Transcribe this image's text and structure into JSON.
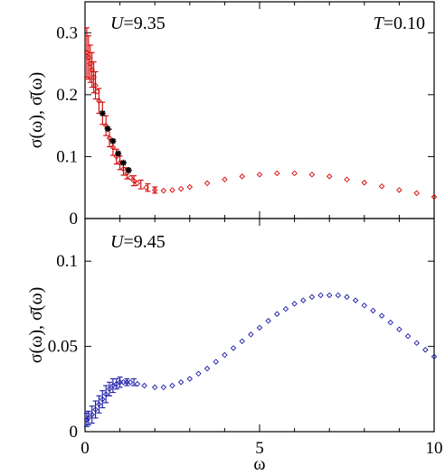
{
  "chart_data": [
    {
      "type": "scatter",
      "annotations": [
        {
          "text_var": "U",
          "text_val": "=9.35",
          "position": "top-left"
        },
        {
          "text_var": "T",
          "text_val": "=0.10",
          "position": "top-right"
        }
      ],
      "ylabel": "σ(ω), σ̄(ω)",
      "xlim": [
        0,
        10
      ],
      "ylim": [
        0,
        0.35
      ],
      "yticks": [
        0,
        0.1,
        0.2,
        0.3
      ],
      "ytick_labels": [
        "0",
        "0.1",
        "0.2",
        "0.3"
      ],
      "grid": false,
      "series": [
        {
          "color": "#d40000",
          "marker": "diamond-open",
          "x": [
            0.05,
            0.1,
            0.15,
            0.2,
            0.25,
            0.3,
            0.35,
            0.4,
            0.5,
            0.6,
            0.7,
            0.8,
            0.9,
            1.0,
            1.1,
            1.2,
            1.3,
            1.4,
            1.5,
            1.75,
            2.0,
            2.25,
            2.5,
            2.75,
            3.0,
            3.5,
            4.0,
            4.5,
            5.0,
            5.5,
            6.0,
            6.5,
            7.0,
            7.5,
            8.0,
            8.5,
            9.0,
            9.5,
            10.0
          ],
          "values": [
            0.268,
            0.26,
            0.25,
            0.24,
            0.228,
            0.215,
            0.205,
            0.19,
            0.17,
            0.15,
            0.13,
            0.115,
            0.1,
            0.09,
            0.08,
            0.073,
            0.066,
            0.061,
            0.057,
            0.05,
            0.046,
            0.045,
            0.046,
            0.048,
            0.051,
            0.057,
            0.063,
            0.068,
            0.071,
            0.073,
            0.073,
            0.071,
            0.068,
            0.063,
            0.058,
            0.052,
            0.046,
            0.041,
            0.035
          ]
        },
        {
          "color": "#000000",
          "marker": "star",
          "x": [
            0.5,
            0.65,
            0.8,
            0.95,
            1.1,
            1.25
          ],
          "values": [
            0.17,
            0.145,
            0.125,
            0.105,
            0.09,
            0.078
          ]
        }
      ],
      "error_bars": {
        "color": "#d40000",
        "x": [
          0.05,
          0.1,
          0.15,
          0.2,
          0.25,
          0.3,
          0.4,
          0.5,
          0.6,
          0.7,
          0.8,
          0.9,
          1.0,
          1.1,
          1.2,
          1.4,
          1.6,
          1.8,
          2.0
        ],
        "center": [
          0.268,
          0.26,
          0.25,
          0.24,
          0.228,
          0.215,
          0.19,
          0.17,
          0.15,
          0.13,
          0.115,
          0.1,
          0.09,
          0.08,
          0.073,
          0.061,
          0.055,
          0.05,
          0.046
        ],
        "err": [
          0.04,
          0.035,
          0.03,
          0.028,
          0.025,
          0.022,
          0.02,
          0.018,
          0.016,
          0.014,
          0.013,
          0.012,
          0.011,
          0.01,
          0.009,
          0.008,
          0.007,
          0.006,
          0.005
        ]
      }
    },
    {
      "type": "scatter",
      "annotations": [
        {
          "text_var": "U",
          "text_val": "=9.45",
          "position": "top-left"
        }
      ],
      "xlabel": "ω",
      "ylabel": "σ(ω), σ̄(ω)",
      "xlim": [
        0,
        10
      ],
      "ylim": [
        0,
        0.125
      ],
      "xticks": [
        0,
        5,
        10
      ],
      "xtick_labels": [
        "0",
        "5",
        "10"
      ],
      "yticks": [
        0,
        0.05,
        0.1
      ],
      "ytick_labels": [
        "0",
        "0.05",
        "0.1"
      ],
      "grid": false,
      "series": [
        {
          "color": "#1a1aa6",
          "marker": "diamond-open",
          "x": [
            0.05,
            0.1,
            0.2,
            0.3,
            0.4,
            0.5,
            0.6,
            0.7,
            0.8,
            0.9,
            1.0,
            1.1,
            1.2,
            1.3,
            1.5,
            1.7,
            2.0,
            2.25,
            2.5,
            2.75,
            3.0,
            3.25,
            3.5,
            3.75,
            4.0,
            4.25,
            4.5,
            4.75,
            5.0,
            5.25,
            5.5,
            5.75,
            6.0,
            6.25,
            6.5,
            6.75,
            7.0,
            7.25,
            7.5,
            7.75,
            8.0,
            8.25,
            8.5,
            8.75,
            9.0,
            9.25,
            9.5,
            9.75,
            10.0
          ],
          "values": [
            0.007,
            0.008,
            0.01,
            0.013,
            0.016,
            0.019,
            0.022,
            0.025,
            0.027,
            0.028,
            0.029,
            0.029,
            0.029,
            0.029,
            0.028,
            0.027,
            0.026,
            0.026,
            0.027,
            0.029,
            0.031,
            0.034,
            0.037,
            0.041,
            0.045,
            0.049,
            0.053,
            0.057,
            0.061,
            0.065,
            0.069,
            0.072,
            0.075,
            0.077,
            0.079,
            0.08,
            0.08,
            0.08,
            0.079,
            0.077,
            0.074,
            0.071,
            0.068,
            0.064,
            0.06,
            0.056,
            0.052,
            0.048,
            0.044
          ]
        }
      ],
      "error_bars": {
        "color": "#1a1aa6",
        "x": [
          0.05,
          0.1,
          0.2,
          0.3,
          0.4,
          0.5,
          0.6,
          0.7,
          0.8,
          0.9,
          1.0,
          1.2,
          1.4
        ],
        "center": [
          0.007,
          0.008,
          0.01,
          0.013,
          0.016,
          0.019,
          0.022,
          0.025,
          0.027,
          0.028,
          0.029,
          0.029,
          0.029
        ],
        "err": [
          0.004,
          0.004,
          0.005,
          0.005,
          0.005,
          0.005,
          0.005,
          0.004,
          0.004,
          0.003,
          0.003,
          0.002,
          0.002
        ]
      }
    }
  ]
}
